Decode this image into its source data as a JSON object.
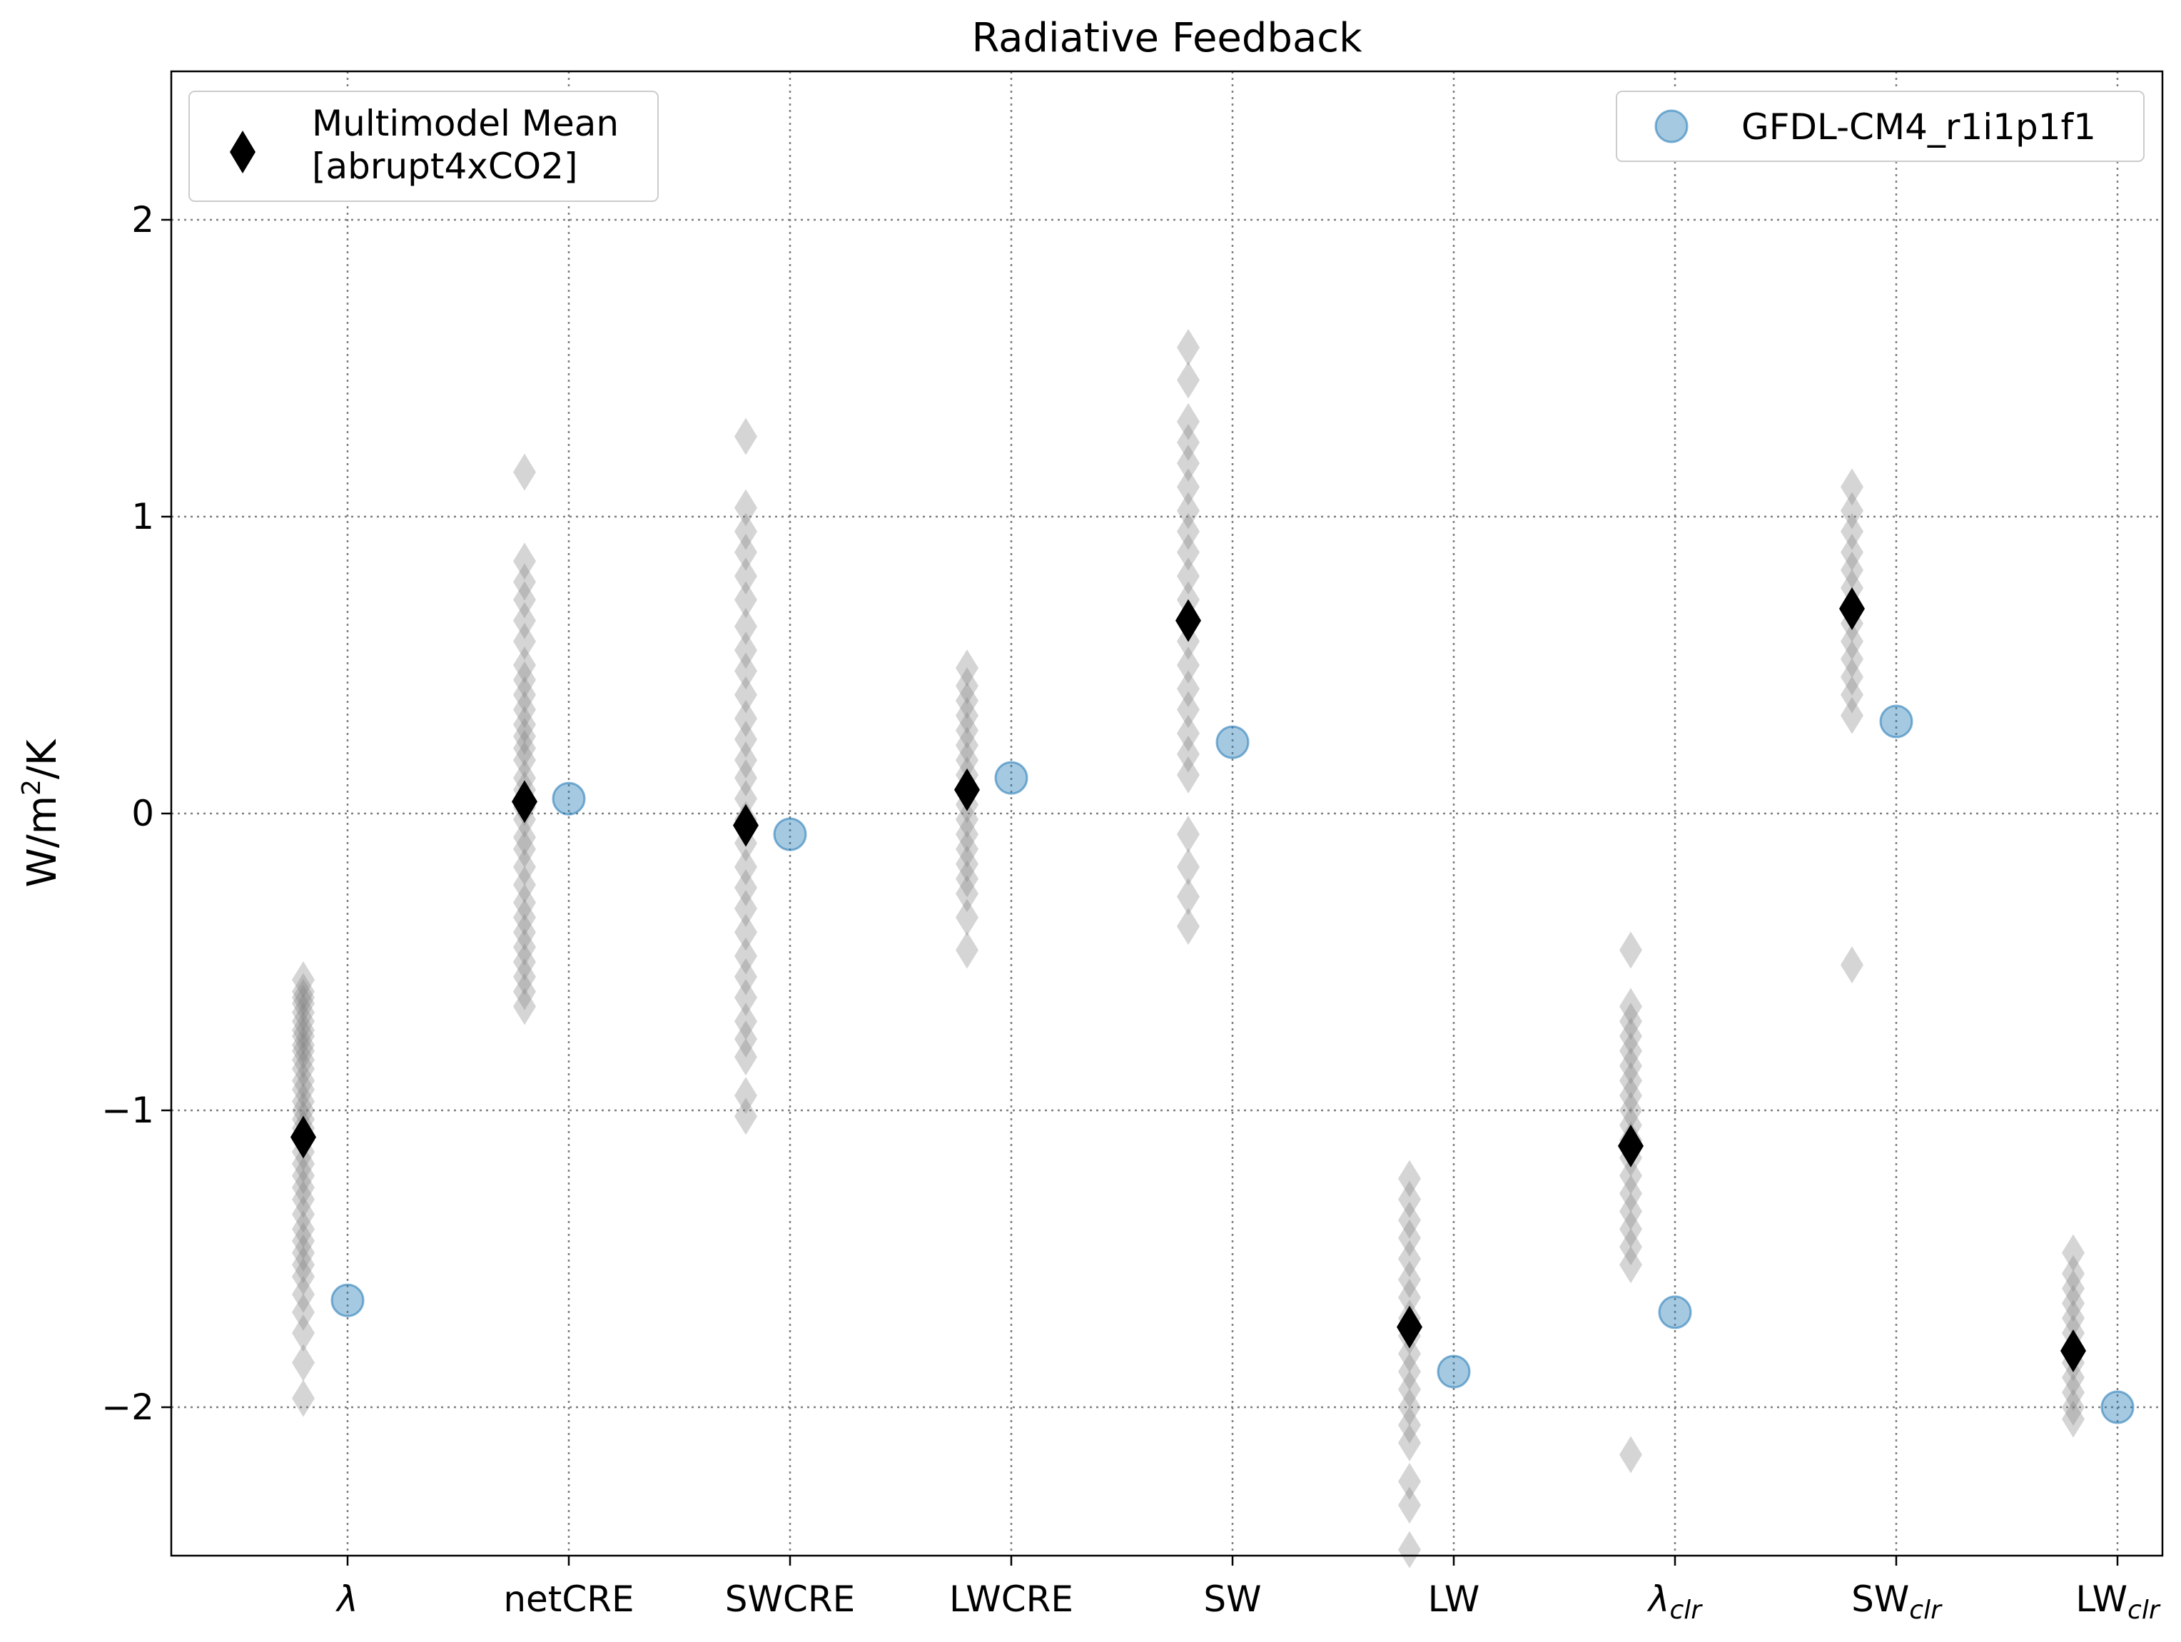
{
  "chart_data": {
    "type": "scatter",
    "title": "Radiative Feedback",
    "ylabel": "W/m²/K",
    "ylabel_parts": {
      "main": "W/m",
      "sup": "2",
      "tail": "/K"
    },
    "ylim": [
      -2.5,
      2.5
    ],
    "yticks": [
      2,
      1,
      0,
      -1,
      -2
    ],
    "ytick_labels": [
      "2",
      "1",
      "0",
      "−1",
      "−2"
    ],
    "grid": true,
    "categories": [
      {
        "main": "λ",
        "sub": ""
      },
      {
        "main": "netCRE",
        "sub": ""
      },
      {
        "main": "SWCRE",
        "sub": ""
      },
      {
        "main": "LWCRE",
        "sub": ""
      },
      {
        "main": "SW",
        "sub": ""
      },
      {
        "main": "LW",
        "sub": ""
      },
      {
        "main": "λ",
        "sub": "clr"
      },
      {
        "main": "SW",
        "sub": "clr"
      },
      {
        "main": "LW",
        "sub": "clr"
      }
    ],
    "series": [
      {
        "name": "Multimodel Mean [abrupt4xCO2]",
        "legend_lines": [
          "Multimodel Mean",
          "[abrupt4xCO2]"
        ],
        "marker": "diamond",
        "color": "#000000",
        "values": [
          -1.09,
          0.04,
          -0.04,
          0.08,
          0.65,
          -1.73,
          -1.12,
          0.69,
          -1.81
        ]
      },
      {
        "name": "GFDL-CM4_r1i1p1f1",
        "legend_lines": [
          "GFDL-CM4_r1i1p1f1"
        ],
        "marker": "circle",
        "color": "#1f77b4",
        "values": [
          -1.64,
          0.05,
          -0.07,
          0.12,
          0.24,
          -1.88,
          -1.68,
          0.31,
          -2.0
        ]
      }
    ],
    "individual_models": {
      "marker": "diamond",
      "color": "#808080",
      "values": [
        [
          -0.56,
          -0.6,
          -0.62,
          -0.64,
          -0.67,
          -0.7,
          -0.73,
          -0.75,
          -0.78,
          -0.8,
          -0.83,
          -0.86,
          -0.9,
          -0.93,
          -0.97,
          -1.0,
          -1.03,
          -1.06,
          -1.1,
          -1.14,
          -1.18,
          -1.22,
          -1.26,
          -1.3,
          -1.35,
          -1.4,
          -1.44,
          -1.48,
          -1.52,
          -1.56,
          -1.62,
          -1.68,
          -1.75,
          -1.85,
          -1.97
        ],
        [
          1.15,
          0.85,
          0.78,
          0.72,
          0.65,
          0.58,
          0.5,
          0.45,
          0.4,
          0.35,
          0.3,
          0.26,
          0.22,
          0.18,
          0.12,
          0.08,
          0.02,
          -0.02,
          -0.08,
          -0.12,
          -0.18,
          -0.24,
          -0.3,
          -0.35,
          -0.4,
          -0.45,
          -0.5,
          -0.55,
          -0.6,
          -0.65
        ],
        [
          1.27,
          1.03,
          0.95,
          0.88,
          0.8,
          0.72,
          0.63,
          0.55,
          0.48,
          0.4,
          0.32,
          0.25,
          0.18,
          0.12,
          0.05,
          -0.02,
          -0.1,
          -0.18,
          -0.25,
          -0.32,
          -0.4,
          -0.48,
          -0.55,
          -0.62,
          -0.7,
          -0.76,
          -0.82,
          -0.95,
          -1.02
        ],
        [
          0.49,
          0.43,
          0.38,
          0.33,
          0.28,
          0.23,
          0.18,
          0.13,
          0.08,
          0.03,
          -0.02,
          -0.07,
          -0.12,
          -0.17,
          -0.22,
          -0.27,
          -0.35,
          -0.46
        ],
        [
          1.57,
          1.46,
          1.32,
          1.25,
          1.18,
          1.1,
          1.02,
          0.95,
          0.88,
          0.8,
          0.72,
          0.65,
          0.58,
          0.5,
          0.42,
          0.35,
          0.27,
          0.2,
          0.13,
          -0.07,
          -0.18,
          -0.28,
          -0.38
        ],
        [
          -1.23,
          -1.3,
          -1.37,
          -1.43,
          -1.5,
          -1.57,
          -1.63,
          -1.7,
          -1.76,
          -1.82,
          -1.88,
          -1.94,
          -2.0,
          -2.06,
          -2.12,
          -2.25,
          -2.33,
          -2.48
        ],
        [
          -0.46,
          -0.65,
          -0.7,
          -0.75,
          -0.8,
          -0.85,
          -0.9,
          -0.95,
          -1.0,
          -1.05,
          -1.1,
          -1.16,
          -1.22,
          -1.28,
          -1.34,
          -1.4,
          -1.46,
          -1.52,
          -2.16
        ],
        [
          1.1,
          1.02,
          0.95,
          0.88,
          0.82,
          0.76,
          0.7,
          0.64,
          0.58,
          0.52,
          0.46,
          0.4,
          0.33,
          -0.51
        ],
        [
          -1.48,
          -1.55,
          -1.6,
          -1.65,
          -1.7,
          -1.75,
          -1.8,
          -1.85,
          -1.9,
          -1.95,
          -2.0,
          -2.04
        ]
      ]
    },
    "legend_left_position": "upper left",
    "legend_right_position": "upper right"
  }
}
